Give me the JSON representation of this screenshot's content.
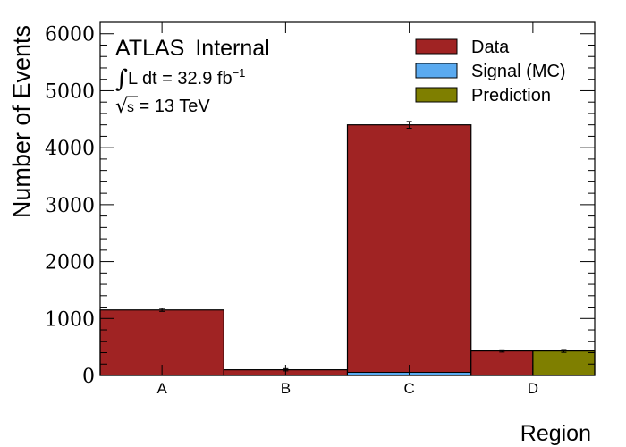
{
  "chart_data": {
    "type": "bar",
    "title": "",
    "xlabel": "Region",
    "ylabel": "Number of Events",
    "ylim": [
      0,
      6200
    ],
    "y_ticks": [
      0,
      1000,
      2000,
      3000,
      4000,
      5000,
      6000
    ],
    "categories": [
      "A",
      "B",
      "C",
      "D"
    ],
    "series": [
      {
        "name": "Data",
        "color": "#a02323",
        "values": [
          1150,
          100,
          4400,
          430
        ],
        "errors": [
          25,
          20,
          60,
          20
        ]
      },
      {
        "name": "Signal (MC)",
        "color": "#5aaaf0",
        "values": [
          0,
          0,
          55,
          0
        ]
      },
      {
        "name": "Prediction",
        "color": "#7f7f00",
        "values": [
          null,
          null,
          null,
          430
        ],
        "errors": [
          null,
          null,
          null,
          25
        ]
      }
    ],
    "annotations": {
      "experiment": "ATLAS",
      "status": "Internal",
      "lumi_prefix": "L dt = 32.9 fb",
      "lumi_exponent": "−1",
      "energy_sqrt_symbol": "√",
      "energy_sqrt_arg": "s",
      "energy_rest": " = 13 TeV"
    },
    "legend": {
      "position": "top-right",
      "entries": [
        "Data",
        "Signal (MC)",
        "Prediction"
      ]
    },
    "grid": false
  }
}
